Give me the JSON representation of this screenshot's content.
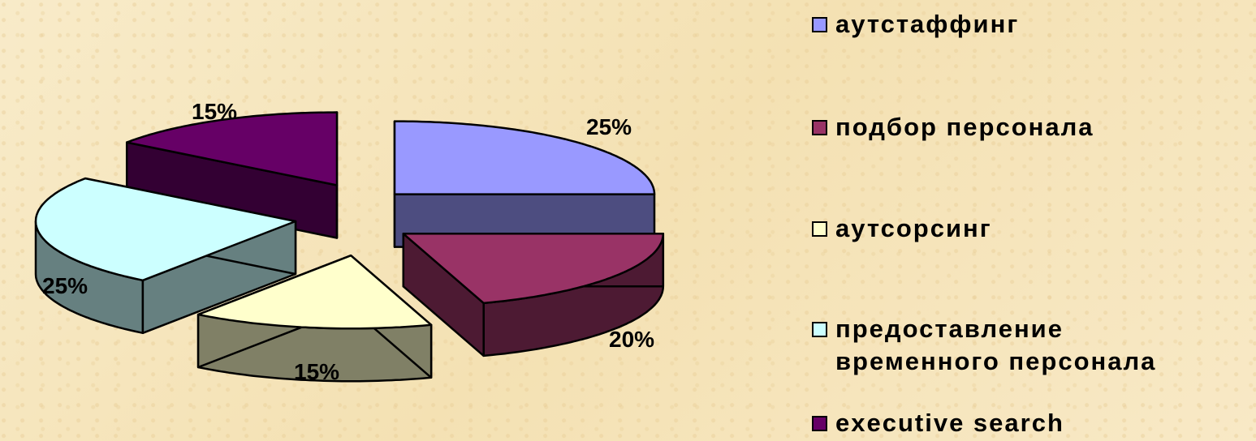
{
  "chart_data": {
    "type": "pie",
    "title": "",
    "legend_position": "right",
    "series": [
      {
        "name": "аутстаффинг",
        "value": 25,
        "label": "25%",
        "color": "#9999ff",
        "side_color": "#4d4d80"
      },
      {
        "name": "подбор персонала",
        "value": 20,
        "label": "20%",
        "color": "#993366",
        "side_color": "#4d1a33"
      },
      {
        "name": "аутсорсинг",
        "value": 15,
        "label": "15%",
        "color": "#ffffcc",
        "side_color": "#808066"
      },
      {
        "name": "предоставление\nвременного персонала",
        "value": 25,
        "label": "25%",
        "color": "#ccffff",
        "side_color": "#668080"
      },
      {
        "name": "executive search",
        "value": 15,
        "label": "15%",
        "color": "#660066",
        "side_color": "#330033"
      }
    ]
  }
}
